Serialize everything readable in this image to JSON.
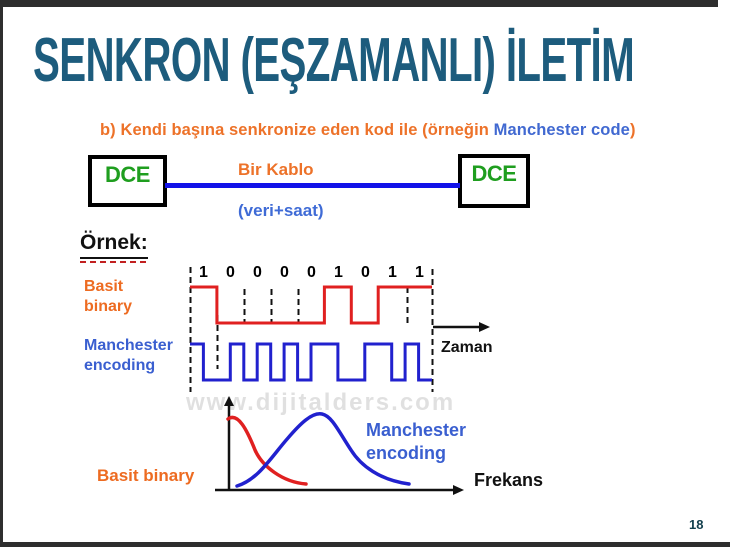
{
  "slide": {
    "title": "SENKRON (EŞZAMANLI) İLETİM",
    "page_number": "18",
    "watermark": "www.dijitalders.com"
  },
  "subtitle": {
    "prefix": "b) Kendi başına senkronize eden kod ile (örneğin ",
    "highlight": "Manchester code",
    "suffix": ")"
  },
  "cable_diagram": {
    "left_box_label": "DCE",
    "right_box_label": "DCE",
    "cable_label": "Bir Kablo",
    "cable_sublabel": "(veri+saat)",
    "cable_color": "#1212e8",
    "box_text_color": "#1f9e1f"
  },
  "example": {
    "heading": "Örnek:",
    "bits": [
      "1",
      "0",
      "0",
      "0",
      "0",
      "1",
      "0",
      "1",
      "1"
    ],
    "signals": [
      {
        "name": "Basit binary",
        "label_lines": [
          "Basit",
          "binary"
        ],
        "color": "#e02020",
        "encoding": "nrz"
      },
      {
        "name": "Manchester encoding",
        "label_lines": [
          "Manchester",
          "encoding"
        ],
        "color": "#2121ce",
        "encoding": "manchester"
      }
    ],
    "time_axis_label": "Zaman"
  },
  "spectrum": {
    "x_axis_label": "Frekans",
    "curves": [
      {
        "name": "Basit binary",
        "color": "#e02020",
        "shape": "low-frequency decaying lobe"
      },
      {
        "name": "Manchester encoding",
        "label_lines": [
          "Manchester",
          "encoding"
        ],
        "color": "#2121ce",
        "shape": "bell centered at higher frequency"
      }
    ]
  },
  "colors": {
    "title": "#1d5c7d",
    "subtitle_orange": "#ed7229",
    "subtitle_blue": "#4169d1",
    "frame_bar": "#2e2e2e"
  }
}
